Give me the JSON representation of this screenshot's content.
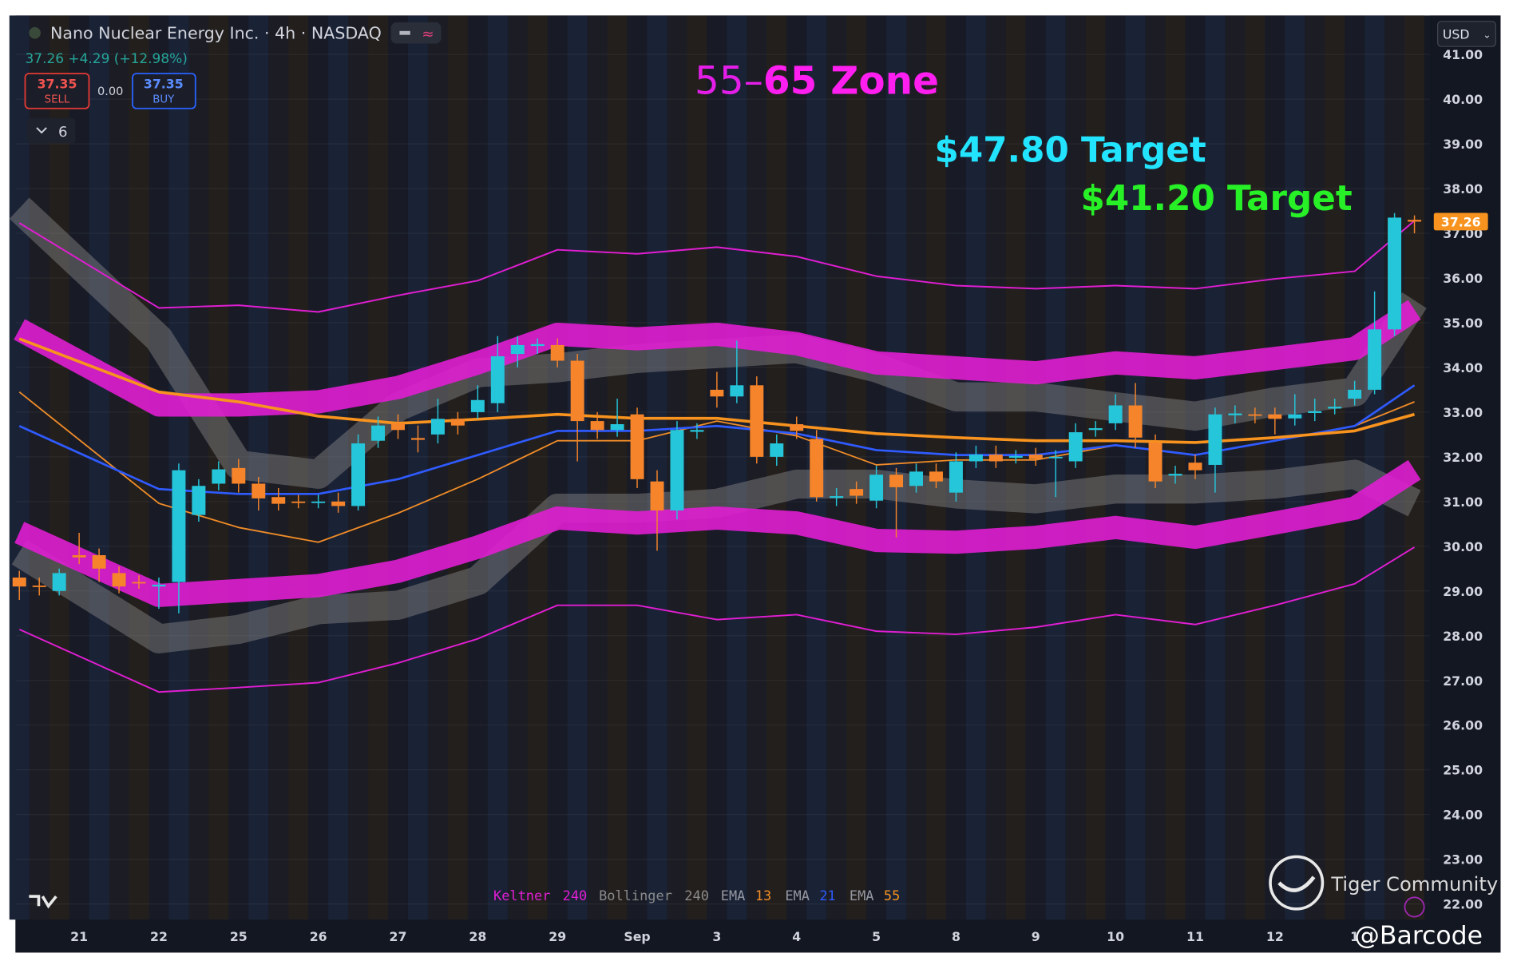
{
  "chart_data": {
    "type": "candlestick",
    "title": "Nano Nuclear Energy Inc. · 4h · NASDAQ",
    "quote": "37.26 +4.29 (+12.98%)",
    "sell": {
      "price": 37.35,
      "label": "SELL"
    },
    "spread": "0.00",
    "buy": {
      "price": 37.35,
      "label": "BUY"
    },
    "indicator_count": 6,
    "currency": "USD",
    "zone": {
      "prefix": "55–",
      "text": "65 Zone"
    },
    "targets": [
      {
        "text": "$47.80 Target",
        "color": "#22e4ff"
      },
      {
        "text": "$41.20 Target",
        "color": "#27f027"
      }
    ],
    "watermark": "Tiger Community",
    "author": "@Barcode",
    "up_color": "#26c6da",
    "down_color": "#f5842a",
    "grid": true,
    "ylim": [
      21.65,
      41.87
    ],
    "yticks": [
      {
        "value": 22,
        "label": "22.00"
      },
      {
        "value": 23,
        "label": "23.00"
      },
      {
        "value": 24,
        "label": "24.00"
      },
      {
        "value": 25,
        "label": "25.00"
      },
      {
        "value": 26,
        "label": "26.00"
      },
      {
        "value": 27,
        "label": "27.00"
      },
      {
        "value": 28,
        "label": "28.00"
      },
      {
        "value": 29,
        "label": "29.00"
      },
      {
        "value": 30,
        "label": "30.00"
      },
      {
        "value": 31,
        "label": "31.00"
      },
      {
        "value": 32,
        "label": "32.00"
      },
      {
        "value": 33,
        "label": "33.00"
      },
      {
        "value": 34,
        "label": "34.00"
      },
      {
        "value": 35,
        "label": "35.00"
      },
      {
        "value": 36,
        "label": "36.00"
      },
      {
        "value": 37,
        "label": "37.00"
      },
      {
        "value": 38,
        "label": "38.00"
      },
      {
        "value": 39,
        "label": "39.00"
      },
      {
        "value": 40,
        "label": "40.00"
      },
      {
        "value": 41,
        "label": "41.00"
      }
    ],
    "current_price": 37.26,
    "categories": [
      null,
      null,
      null,
      "21",
      null,
      null,
      null,
      "22",
      null,
      null,
      null,
      "25",
      null,
      null,
      null,
      "26",
      null,
      null,
      null,
      "27",
      null,
      null,
      null,
      "28",
      null,
      null,
      null,
      "29",
      null,
      null,
      null,
      "Sep",
      null,
      null,
      null,
      "3",
      null,
      null,
      null,
      "4",
      null,
      null,
      null,
      "5",
      null,
      null,
      null,
      "8",
      null,
      null,
      null,
      "9",
      null,
      null,
      null,
      "10",
      null,
      null,
      null,
      "11",
      null,
      null,
      null,
      "12",
      null,
      null,
      null,
      "1",
      null,
      null,
      null
    ],
    "open": [
      29.3,
      29.12,
      29.0,
      29.8,
      29.8,
      29.4,
      29.2,
      29.1,
      29.2,
      30.7,
      31.4,
      31.75,
      31.4,
      31.1,
      31.0,
      30.98,
      31.0,
      30.9,
      32.36,
      32.75,
      32.42,
      32.5,
      32.85,
      33.0,
      33.2,
      34.3,
      34.48,
      34.5,
      34.15,
      32.8,
      32.6,
      32.95,
      31.45,
      30.8,
      32.56,
      33.5,
      33.35,
      33.6,
      32.0,
      32.73,
      32.4,
      31.08,
      31.28,
      31.02,
      31.6,
      31.35,
      31.67,
      31.2,
      31.9,
      32.05,
      31.98,
      32.05,
      31.98,
      31.9,
      32.6,
      32.75,
      33.15,
      32.32,
      31.58,
      31.87,
      31.82,
      32.93,
      32.95,
      32.95,
      32.86,
      32.98,
      33.08,
      33.3,
      33.5,
      34.85,
      37.3
    ],
    "high": [
      29.45,
      29.3,
      29.5,
      30.3,
      29.95,
      29.55,
      29.35,
      29.3,
      31.85,
      31.5,
      31.9,
      31.95,
      31.55,
      31.3,
      31.15,
      31.15,
      31.2,
      32.5,
      32.9,
      32.95,
      32.7,
      33.3,
      33.0,
      33.6,
      34.7,
      34.7,
      34.65,
      34.65,
      34.3,
      33.0,
      33.3,
      33.1,
      31.7,
      32.8,
      32.75,
      33.9,
      34.6,
      33.8,
      32.5,
      32.9,
      32.6,
      31.3,
      31.45,
      31.8,
      31.75,
      31.85,
      31.85,
      32.1,
      32.25,
      32.25,
      32.15,
      32.2,
      32.15,
      32.75,
      32.8,
      33.4,
      33.65,
      32.5,
      31.8,
      32.05,
      33.1,
      33.15,
      33.1,
      33.1,
      33.4,
      33.3,
      33.3,
      33.7,
      35.7,
      37.45,
      37.4
    ],
    "low": [
      28.8,
      28.9,
      28.9,
      29.6,
      29.2,
      28.95,
      29.05,
      28.6,
      28.5,
      30.55,
      31.25,
      31.2,
      30.8,
      30.8,
      30.85,
      30.85,
      30.75,
      30.8,
      32.2,
      32.4,
      32.1,
      32.3,
      32.5,
      32.85,
      33.0,
      34.0,
      34.3,
      34.0,
      31.9,
      32.4,
      32.45,
      31.3,
      29.9,
      30.6,
      32.4,
      33.1,
      33.2,
      31.85,
      31.8,
      32.4,
      31.0,
      30.9,
      30.95,
      30.85,
      30.2,
      31.2,
      31.3,
      31.0,
      31.75,
      31.75,
      31.85,
      31.8,
      31.1,
      31.75,
      32.45,
      32.6,
      32.2,
      31.3,
      31.4,
      31.5,
      31.2,
      32.75,
      32.75,
      32.5,
      32.7,
      32.8,
      32.95,
      33.15,
      33.4,
      34.7,
      37.0
    ],
    "close": [
      29.1,
      29.1,
      29.4,
      29.75,
      29.5,
      29.1,
      29.18,
      29.14,
      31.7,
      31.35,
      31.72,
      31.4,
      31.07,
      30.95,
      30.98,
      31.0,
      30.9,
      32.3,
      32.7,
      32.6,
      32.38,
      32.85,
      32.7,
      33.27,
      34.25,
      34.5,
      34.52,
      34.15,
      32.8,
      32.6,
      32.73,
      31.5,
      30.8,
      32.6,
      32.6,
      33.35,
      33.6,
      32.0,
      32.3,
      32.58,
      31.1,
      31.12,
      31.13,
      31.6,
      31.32,
      31.67,
      31.45,
      31.9,
      32.05,
      31.9,
      32.02,
      31.95,
      32.0,
      32.55,
      32.64,
      33.15,
      32.43,
      31.45,
      31.62,
      31.7,
      32.95,
      32.97,
      32.93,
      32.85,
      32.95,
      33.02,
      33.12,
      33.5,
      34.85,
      37.35,
      37.26
    ],
    "indicators": {
      "x": [
        0,
        7,
        11,
        15,
        19,
        23,
        27,
        31,
        35,
        39,
        43,
        47,
        51,
        55,
        59,
        63,
        67,
        70
      ],
      "keltner": {
        "label": "Keltner",
        "length": 240,
        "color": "#e01ed2",
        "upper_outer": [
          37.23,
          35.33,
          35.39,
          35.24,
          35.61,
          35.94,
          36.63,
          36.54,
          36.69,
          36.48,
          36.04,
          35.83,
          35.76,
          35.83,
          35.76,
          35.98,
          36.15,
          37.28
        ],
        "upper": [
          34.85,
          33.16,
          33.16,
          33.23,
          33.55,
          34.1,
          34.74,
          34.64,
          34.74,
          34.53,
          34.1,
          33.99,
          33.88,
          34.1,
          33.99,
          34.2,
          34.42,
          35.29
        ],
        "lower": [
          30.31,
          28.9,
          29.01,
          29.12,
          29.44,
          29.98,
          30.63,
          30.52,
          30.63,
          30.52,
          30.13,
          30.09,
          30.2,
          30.42,
          30.2,
          30.52,
          30.85,
          31.71
        ],
        "lower_outer": [
          28.14,
          26.74,
          26.84,
          26.95,
          27.39,
          27.93,
          28.68,
          28.68,
          28.36,
          28.47,
          28.1,
          28.03,
          28.19,
          28.47,
          28.25,
          28.68,
          29.16,
          29.98
        ]
      },
      "bollinger": {
        "label": "Bollinger",
        "length": 240,
        "color": "#8a8a8a",
        "upper": [
          37.56,
          34.64,
          31.82,
          31.61,
          33.12,
          33.88,
          33.99,
          34.2,
          34.31,
          34.42,
          33.99,
          33.34,
          33.34,
          33.12,
          32.91,
          33.23,
          33.45,
          35.5
        ],
        "lower": [
          29.87,
          27.93,
          28.14,
          28.58,
          28.68,
          29.23,
          30.85,
          30.85,
          30.96,
          31.39,
          31.39,
          31.17,
          31.06,
          31.28,
          31.28,
          31.39,
          31.61,
          30.96
        ]
      },
      "emas": [
        {
          "label": "EMA",
          "length": 13,
          "color": "#f08c28",
          "width": 1.5,
          "values": [
            33.45,
            30.96,
            30.42,
            30.09,
            30.74,
            31.5,
            32.36,
            32.36,
            32.8,
            32.47,
            31.82,
            31.93,
            31.93,
            32.26,
            32.04,
            32.36,
            32.69,
            33.23
          ]
        },
        {
          "label": "EMA",
          "length": 21,
          "color": "#2f5bff",
          "width": 2.2,
          "values": [
            32.69,
            31.28,
            31.17,
            31.17,
            31.5,
            32.04,
            32.58,
            32.58,
            32.69,
            32.52,
            32.15,
            32.04,
            32.04,
            32.26,
            32.04,
            32.36,
            32.69,
            33.6
          ]
        },
        {
          "label": "EMA",
          "length": 55,
          "color": "#f7931e",
          "width": 3,
          "values": [
            34.64,
            33.45,
            33.23,
            32.91,
            32.75,
            32.84,
            32.95,
            32.86,
            32.86,
            32.69,
            32.52,
            32.43,
            32.36,
            32.36,
            32.32,
            32.43,
            32.58,
            32.95
          ]
        }
      ]
    }
  }
}
